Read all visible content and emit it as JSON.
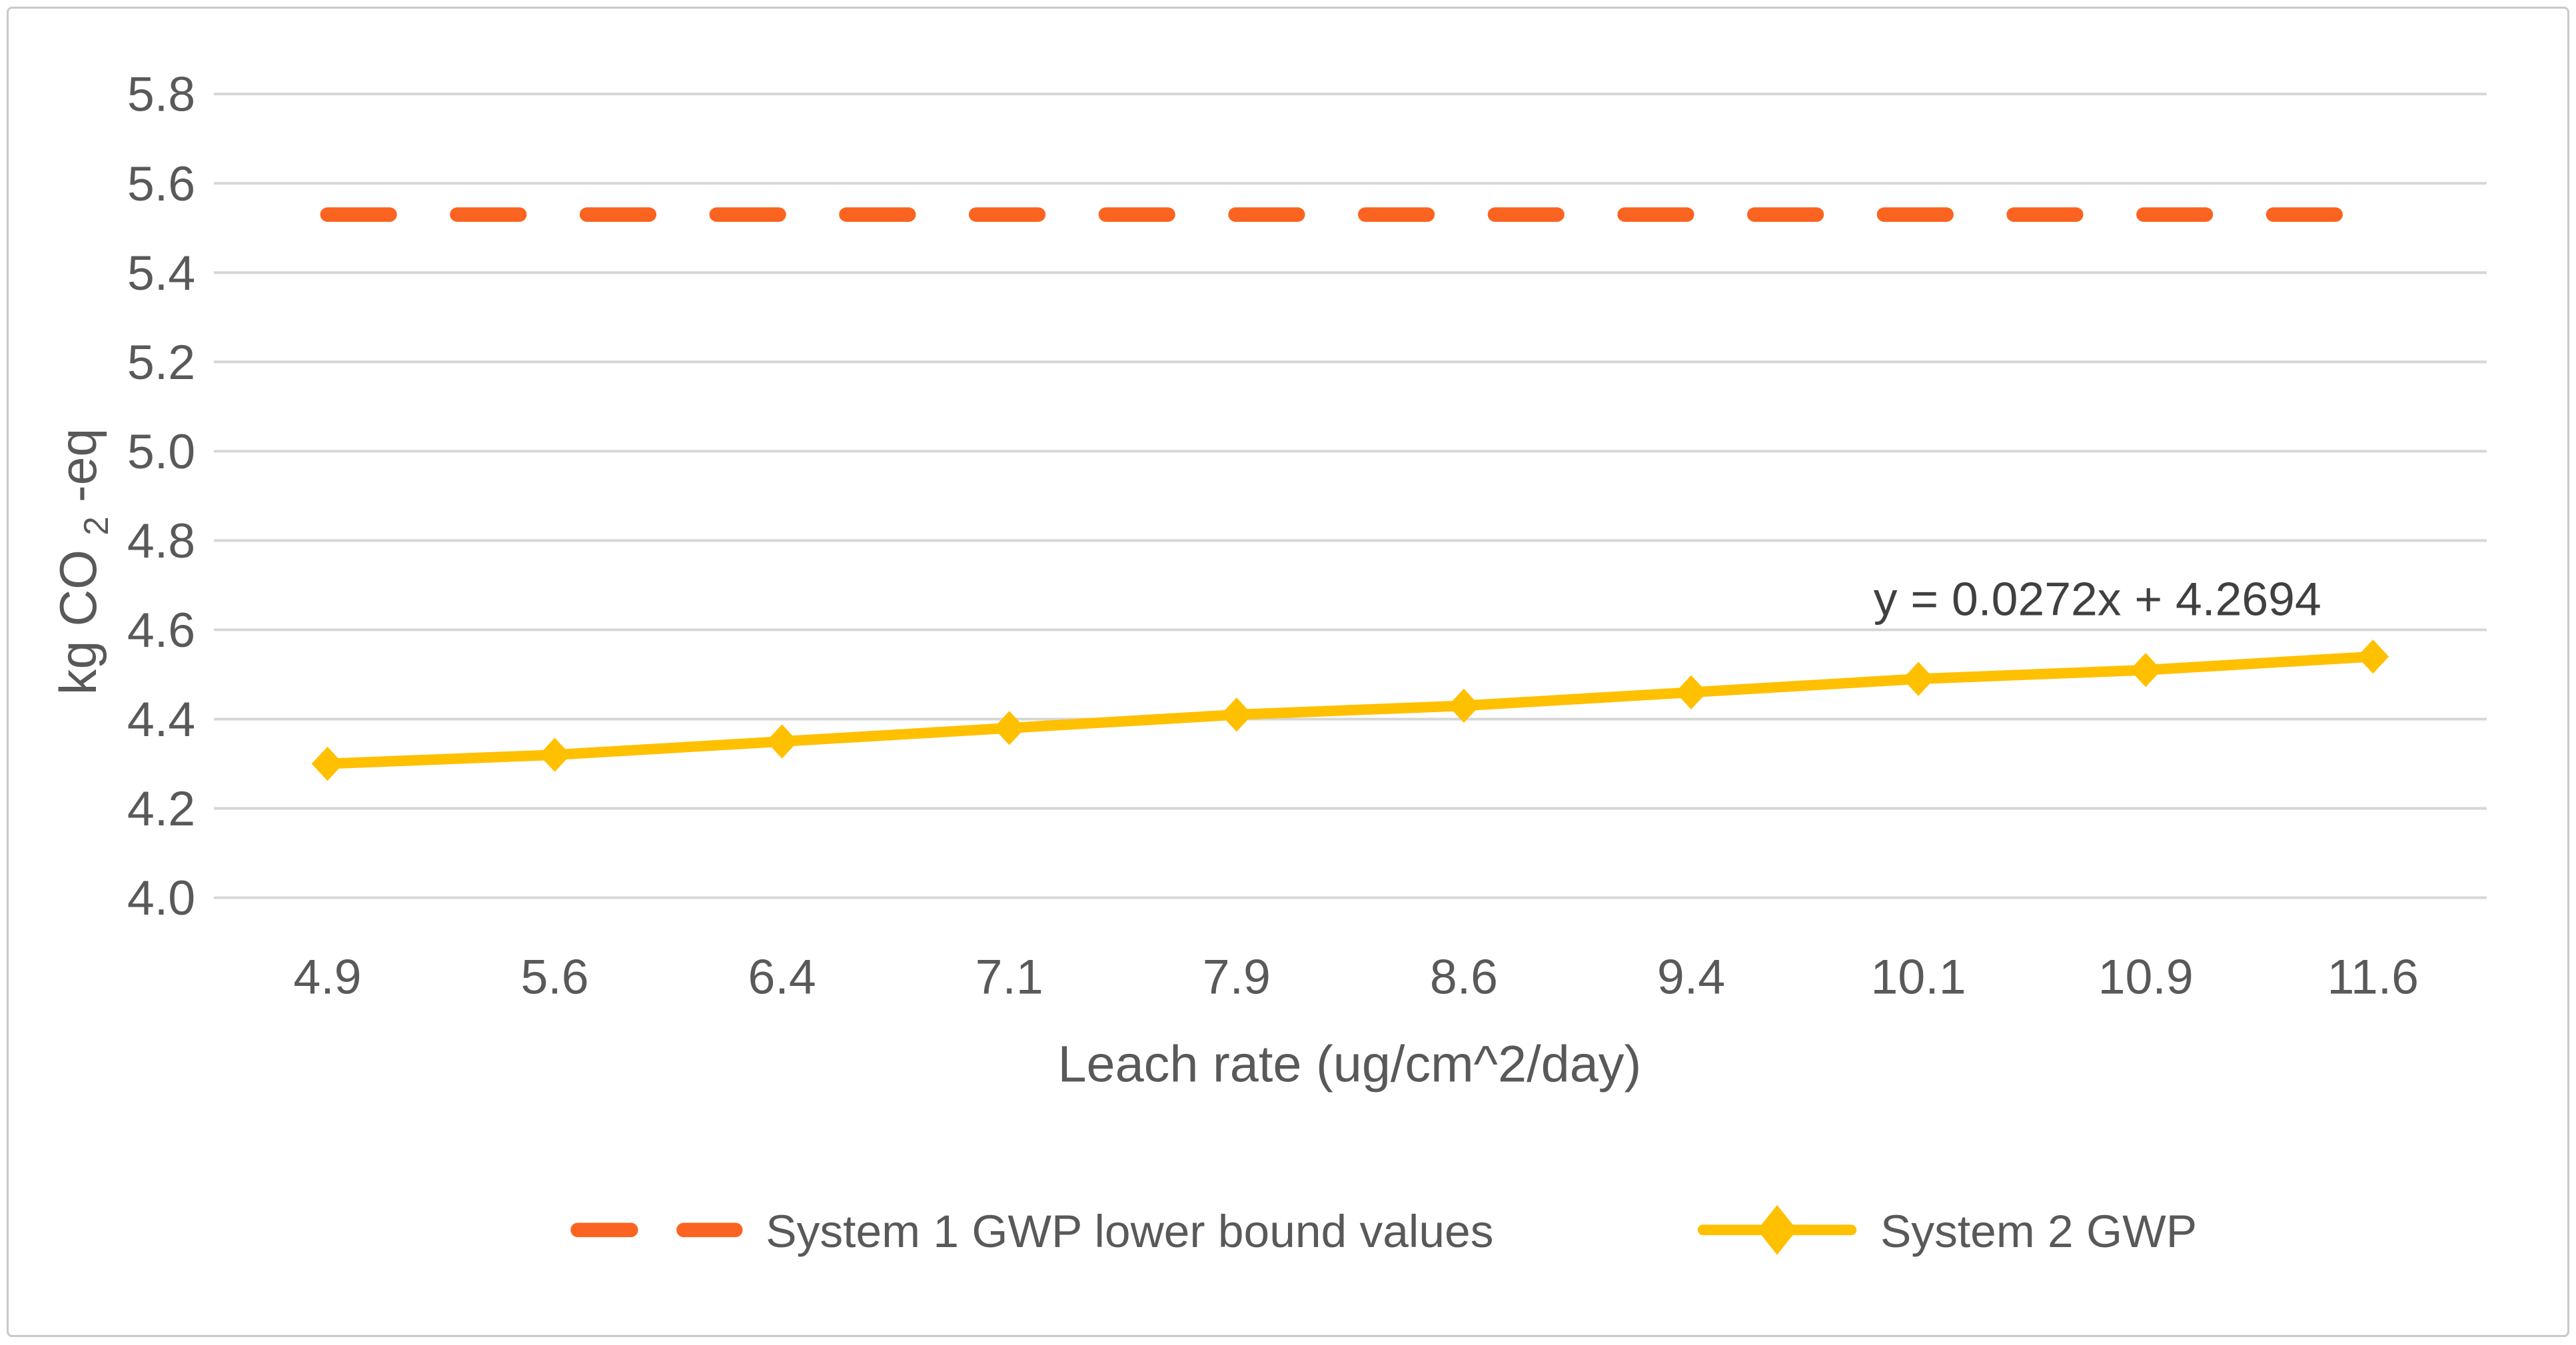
{
  "chart_data": {
    "type": "line",
    "title": "",
    "xlabel": "Leach rate (ug/cm^2/day)",
    "ylabel": {
      "pre": "kg CO",
      "sub": "2",
      "post": "-eq"
    },
    "categories": [
      "4.9",
      "5.6",
      "6.4",
      "7.1",
      "7.9",
      "8.6",
      "9.4",
      "10.1",
      "10.9",
      "11.6"
    ],
    "y_ticks": [
      "4.0",
      "4.2",
      "4.4",
      "4.6",
      "4.8",
      "5.0",
      "5.2",
      "5.4",
      "5.6",
      "5.8"
    ],
    "ylim": [
      4.0,
      5.8
    ],
    "grid": true,
    "legend_position": "bottom",
    "annotation": "y = 0.0272x + 4.2694",
    "series": [
      {
        "name": "System 1 GWP lower bound values",
        "style": "dashed",
        "color": "#FB6420",
        "values": [
          5.53,
          5.53,
          5.53,
          5.53,
          5.53,
          5.53,
          5.53,
          5.53,
          5.53,
          5.53
        ]
      },
      {
        "name": "System 2 GWP",
        "style": "solid-diamond",
        "color": "#FFC000",
        "values": [
          4.3,
          4.32,
          4.35,
          4.38,
          4.41,
          4.43,
          4.46,
          4.49,
          4.51,
          4.54
        ]
      }
    ]
  },
  "colors": {
    "background": "#FFFFFF",
    "frame_border": "#C9C9C9",
    "grid": "#D6D6D6",
    "tick_text": "#595959",
    "annotation_text": "#404040"
  }
}
